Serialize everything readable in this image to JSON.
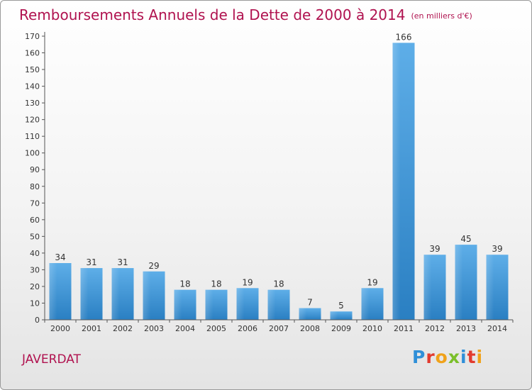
{
  "title": "Remboursements Annuels de la Dette de 2000 à 2014",
  "unit": "(en milliers d'€)",
  "town": "JAVERDAT",
  "logo": "Proxiti",
  "colors": {
    "title": "#b0124f",
    "bar_light": "#5eaee8",
    "bar_dark": "#2a7fc2"
  },
  "chart_data": {
    "type": "bar",
    "categories": [
      "2000",
      "2001",
      "2002",
      "2003",
      "2004",
      "2005",
      "2006",
      "2007",
      "2008",
      "2009",
      "2010",
      "2011",
      "2012",
      "2013",
      "2014"
    ],
    "values": [
      34,
      31,
      31,
      29,
      18,
      18,
      19,
      18,
      7,
      5,
      19,
      166,
      39,
      45,
      39
    ],
    "data_labels": [
      "34",
      "31",
      "31",
      "29",
      "18",
      "18",
      "19",
      "18",
      "7",
      "5",
      "19",
      "166",
      "39",
      "45",
      "39"
    ],
    "ylim": [
      0,
      170
    ],
    "yticks": [
      0,
      10,
      20,
      30,
      40,
      50,
      60,
      70,
      80,
      90,
      100,
      110,
      120,
      130,
      140,
      150,
      160,
      170
    ],
    "grid": false,
    "legend": "none"
  }
}
